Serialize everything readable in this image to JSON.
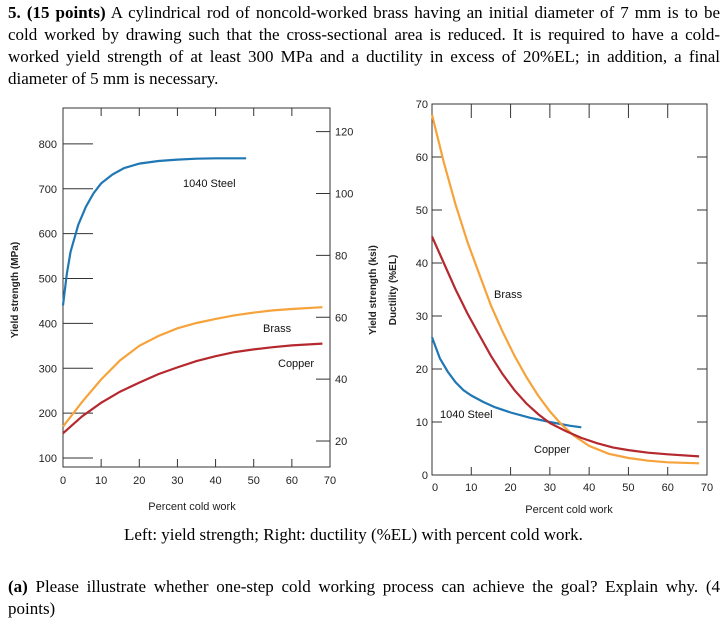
{
  "problem": {
    "number": "5.",
    "points": "(15 points)",
    "text": " A cylindrical rod of noncold-worked brass having an initial diameter of 7 mm is to be cold worked by drawing such that the cross-sectional area is reduced. It is required to have a cold-worked yield strength of at least 300 MPa and a ductility in excess of 20%EL; in addition, a final diameter of 5 mm is necessary."
  },
  "caption": "Left: yield strength; Right: ductility (%EL) with percent cold work.",
  "question": {
    "label": "(a)",
    "text": " Please illustrate whether one-step cold working process can achieve the goal? Explain why. (4 points)"
  },
  "colors": {
    "steel": "#1f77b4",
    "brass": "#f5a33a",
    "copper": "#b5282e"
  },
  "chart_data": [
    {
      "type": "line",
      "xlabel": "Percent cold work",
      "ylabel": "Yield strength (MPa)",
      "ylabel_right": "Yield strength (ksi)",
      "xlim": [
        0,
        70
      ],
      "ylim": [
        80,
        880
      ],
      "xticks": [
        "0",
        "10",
        "20",
        "30",
        "40",
        "50",
        "60",
        "70"
      ],
      "yticks": [
        "100",
        "200",
        "300",
        "400",
        "500",
        "600",
        "700",
        "800"
      ],
      "yticks_right": [
        "20",
        "40",
        "60",
        "80",
        "100",
        "120"
      ],
      "grid": false,
      "series": [
        {
          "name": "1040 Steel",
          "color": "steel",
          "x": [
            0,
            1,
            2,
            4,
            6,
            8,
            10,
            13,
            16,
            20,
            25,
            30,
            35,
            40,
            45,
            48
          ],
          "y": [
            440,
            510,
            560,
            620,
            660,
            690,
            712,
            732,
            746,
            756,
            762,
            765,
            767,
            768,
            768,
            768
          ]
        },
        {
          "name": "Brass",
          "color": "brass",
          "x": [
            0,
            5,
            10,
            15,
            20,
            25,
            30,
            35,
            40,
            45,
            50,
            55,
            60,
            68
          ],
          "y": [
            170,
            225,
            275,
            318,
            350,
            372,
            389,
            401,
            410,
            418,
            424,
            429,
            432,
            436
          ]
        },
        {
          "name": "Copper",
          "color": "copper",
          "x": [
            0,
            5,
            10,
            15,
            20,
            25,
            30,
            35,
            40,
            45,
            50,
            55,
            60,
            68
          ],
          "y": [
            155,
            193,
            223,
            248,
            268,
            287,
            302,
            316,
            327,
            336,
            342,
            347,
            351,
            355
          ]
        }
      ]
    },
    {
      "type": "line",
      "xlabel": "Percent cold work",
      "ylabel": "Ductility (%EL)",
      "xlim": [
        0,
        70
      ],
      "ylim": [
        0,
        70
      ],
      "xticks": [
        "0",
        "10",
        "20",
        "30",
        "40",
        "50",
        "60",
        "70"
      ],
      "yticks": [
        "0",
        "10",
        "20",
        "30",
        "40",
        "50",
        "60",
        "70"
      ],
      "grid": false,
      "series": [
        {
          "name": "1040 Steel",
          "color": "steel",
          "x": [
            0,
            2,
            4,
            6,
            8,
            10,
            13,
            16,
            20,
            25,
            30,
            35,
            38
          ],
          "y": [
            26,
            22,
            19.5,
            17.5,
            16,
            15,
            13.8,
            12.8,
            11.8,
            10.8,
            10,
            9.3,
            9
          ]
        },
        {
          "name": "Brass",
          "color": "brass",
          "x": [
            0,
            3,
            6,
            9,
            12,
            15,
            18,
            21,
            24,
            27,
            30,
            33,
            36,
            40,
            45,
            50,
            55,
            60,
            68
          ],
          "y": [
            68,
            59,
            51,
            44,
            38,
            32,
            27,
            22.5,
            18.5,
            15,
            12,
            9.5,
            7.5,
            5.5,
            4,
            3.2,
            2.7,
            2.4,
            2.2
          ]
        },
        {
          "name": "Copper",
          "color": "copper",
          "x": [
            0,
            3,
            6,
            9,
            12,
            15,
            18,
            21,
            24,
            27,
            30,
            34,
            38,
            42,
            46,
            50,
            55,
            60,
            68
          ],
          "y": [
            45,
            40,
            35,
            30.5,
            26.5,
            22.5,
            19,
            16,
            13.5,
            11.5,
            9.8,
            8.3,
            7,
            6,
            5.2,
            4.7,
            4.2,
            3.9,
            3.5
          ]
        }
      ],
      "annotations": [
        "Brass",
        "1040 Steel",
        "Copper"
      ]
    }
  ]
}
